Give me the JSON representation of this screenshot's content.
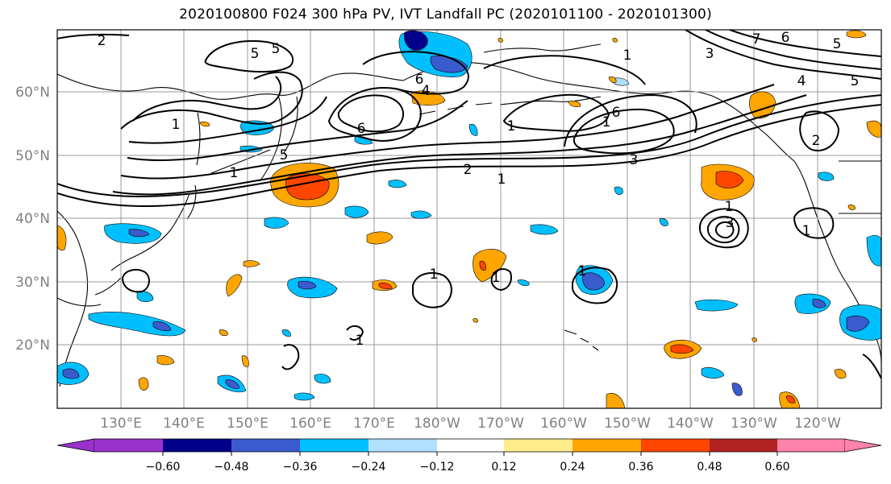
{
  "title": "2020100800 F024 300 hPa PV, IVT Landfall PC (2020101100 - 2020101300)",
  "lat_labels": [
    "60°N",
    "50°N",
    "40°N",
    "30°N",
    "20°N"
  ],
  "lon_labels": [
    "130°E",
    "140°E",
    "150°E",
    "160°E",
    "170°E",
    "180°W",
    "170°W",
    "160°W",
    "150°W",
    "140°W",
    "130°W",
    "120°W"
  ],
  "colorbar": {
    "colors": [
      "#9932cc",
      "#00008b",
      "#3a5bcd",
      "#00bfff",
      "#b0e0ff",
      "#ffffff",
      "#ffec8b",
      "#ffa500",
      "#ff4500",
      "#b22222",
      "#ff82ab"
    ],
    "tick_labels": [
      "−0.60",
      "−0.48",
      "−0.36",
      "−0.24",
      "−0.12",
      "0.12",
      "0.24",
      "0.36",
      "0.48",
      "0.60"
    ]
  },
  "contour_labels": [
    "2",
    "5",
    "5",
    "1",
    "1",
    "6",
    "6",
    "4",
    "1",
    "1",
    "6",
    "5",
    "2",
    "1",
    "1",
    "3",
    "2",
    "7",
    "6",
    "3",
    "4",
    "5",
    "5",
    "1",
    "3",
    "1",
    "1",
    "1",
    "1",
    "1"
  ]
}
